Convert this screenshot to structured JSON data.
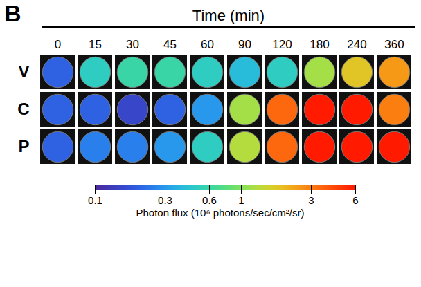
{
  "chart_data": {
    "type": "heatmap",
    "panel_label": "B",
    "xlabel": "Time (min)",
    "categories": [
      "0",
      "15",
      "30",
      "45",
      "60",
      "90",
      "120",
      "180",
      "240",
      "360"
    ],
    "rows": [
      "V",
      "C",
      "P"
    ],
    "values": [
      [
        0.2,
        0.5,
        0.6,
        0.6,
        0.5,
        0.4,
        0.5,
        1.2,
        1.8,
        2.5
      ],
      [
        0.2,
        0.2,
        0.15,
        0.2,
        0.3,
        1.2,
        3.5,
        6,
        6,
        3
      ],
      [
        0.2,
        0.25,
        0.25,
        0.3,
        0.5,
        1.3,
        3.5,
        6,
        6,
        6
      ]
    ],
    "log": true,
    "colorbar": {
      "range": [
        0.1,
        6
      ],
      "ticks": [
        0.1,
        0.3,
        0.6,
        1,
        3,
        6
      ],
      "label": "Photon flux (10⁶ photons/sec/cm²/sr)"
    }
  }
}
